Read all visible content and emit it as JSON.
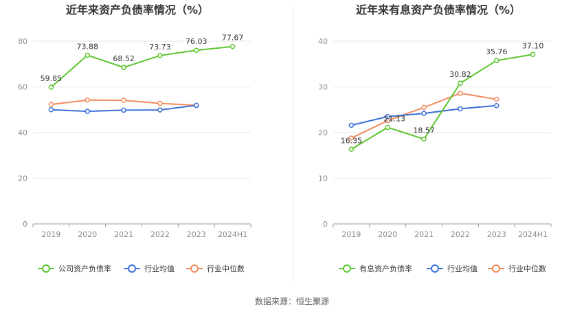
{
  "source_text": "数据来源：恒生聚源",
  "colors": {
    "green": "#5cc62e",
    "blue": "#3a6fd8",
    "orange": "#f28a5c",
    "grid": "#e6e6e6",
    "axis": "#999999"
  },
  "chart_data": [
    {
      "type": "line",
      "title": "近年来资产负债率情况（%）",
      "xlabel": "",
      "ylabel": "",
      "categories": [
        "2019",
        "2020",
        "2021",
        "2022",
        "2023",
        "2024H1"
      ],
      "ylim": [
        0,
        80
      ],
      "yticks": [
        "0",
        "20",
        "40",
        "60",
        "80"
      ],
      "grid": true,
      "legend_position": "bottom",
      "series": [
        {
          "name": "公司资产负债率",
          "color": "#5cc62e",
          "values": [
            59.85,
            73.88,
            68.52,
            73.73,
            76.03,
            77.67
          ],
          "labels": [
            "59.85",
            "73.88",
            "68.52",
            "73.73",
            "76.03",
            "77.67"
          ]
        },
        {
          "name": "行业均值",
          "color": "#3a6fd8",
          "values": [
            50.0,
            49.3,
            49.8,
            49.9,
            51.9,
            null
          ]
        },
        {
          "name": "行业中位数",
          "color": "#f28a5c",
          "values": [
            52.3,
            54.2,
            54.1,
            52.8,
            51.9,
            null
          ]
        }
      ]
    },
    {
      "type": "line",
      "title": "近年来有息资产负债率情况（%）",
      "xlabel": "",
      "ylabel": "",
      "categories": [
        "2019",
        "2020",
        "2021",
        "2022",
        "2023",
        "2024H1"
      ],
      "ylim": [
        0,
        40
      ],
      "yticks": [
        "0",
        "10",
        "20",
        "30",
        "40"
      ],
      "grid": true,
      "legend_position": "bottom",
      "series": [
        {
          "name": "有息资产负债率",
          "color": "#5cc62e",
          "values": [
            16.35,
            21.13,
            18.57,
            30.82,
            35.76,
            37.1
          ],
          "labels": [
            "16.35",
            "21.13",
            "18.57",
            "30.82",
            "35.76",
            "37.10"
          ]
        },
        {
          "name": "行业均值",
          "color": "#3a6fd8",
          "values": [
            21.6,
            23.5,
            24.2,
            25.2,
            25.9,
            null
          ]
        },
        {
          "name": "行业中位数",
          "color": "#f28a5c",
          "values": [
            18.8,
            22.6,
            25.5,
            28.6,
            27.3,
            null
          ]
        }
      ]
    }
  ]
}
